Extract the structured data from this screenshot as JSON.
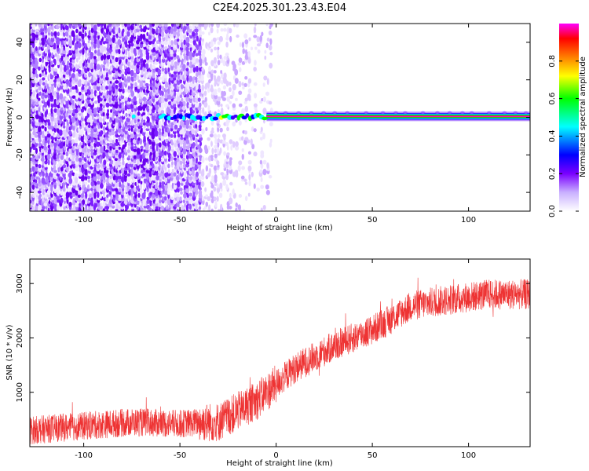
{
  "page_title": "C2E4.2025.301.23.43.E04",
  "chart_data": [
    {
      "type": "heatmap",
      "name": "spectrogram",
      "xlabel": "Height of straight line (km)",
      "ylabel": "Frequency (Hz)",
      "xlim": [
        -128,
        132
      ],
      "ylim": [
        -50,
        50
      ],
      "xticks": [
        -100,
        -50,
        0,
        50,
        100
      ],
      "yticks": [
        -40,
        -20,
        0,
        20,
        40
      ],
      "xtick_labels": [
        "-100",
        "-50",
        "0",
        "50",
        "100"
      ],
      "ytick_labels": [
        "-40",
        "-20",
        "0",
        "20",
        "40"
      ],
      "signal_line_hz": 0.5,
      "signal_onset_km": -60,
      "noise_extent_km": -3,
      "colorbar": {
        "label": "Normalized spectral amplitude",
        "range": [
          0,
          1
        ],
        "ticks": [
          0.0,
          0.2,
          0.4,
          0.6,
          0.8
        ],
        "tick_labels": [
          "0.0",
          "0.2",
          "0.4",
          "0.6",
          "0.8"
        ],
        "colormap": [
          "#ffffff",
          "#c9b0ff",
          "#7a00ff",
          "#0000ff",
          "#00ffff",
          "#00ff00",
          "#ffff00",
          "#ff8000",
          "#ff0000",
          "#ff00ff"
        ]
      }
    },
    {
      "type": "line",
      "name": "snr",
      "xlabel": "Height of straight line (km)",
      "ylabel": "SNR (10 * v/v)",
      "xlim": [
        -128,
        132
      ],
      "ylim": [
        0,
        3450
      ],
      "xticks": [
        -100,
        -50,
        0,
        50,
        100
      ],
      "yticks": [
        1000,
        2000,
        3000
      ],
      "xtick_labels": [
        "-100",
        "-50",
        "0",
        "50",
        "100"
      ],
      "ytick_labels": [
        "1000",
        "2000",
        "3000"
      ],
      "color": "#ee3333",
      "trend": {
        "x": [
          -128,
          -100,
          -75,
          -50,
          -40,
          -30,
          -20,
          -10,
          0,
          10,
          20,
          30,
          40,
          50,
          60,
          70,
          80,
          90,
          100,
          110,
          120,
          132
        ],
        "y": [
          300,
          380,
          450,
          420,
          450,
          450,
          650,
          850,
          1150,
          1450,
          1650,
          1850,
          2000,
          2150,
          2350,
          2580,
          2650,
          2700,
          2750,
          2800,
          2800,
          2800
        ]
      },
      "noise_amplitude": [
        {
          "from": -128,
          "to": -40,
          "amp": 260
        },
        {
          "from": -40,
          "to": 0,
          "amp": 360
        },
        {
          "from": 0,
          "to": 132,
          "amp": 280
        }
      ]
    }
  ]
}
